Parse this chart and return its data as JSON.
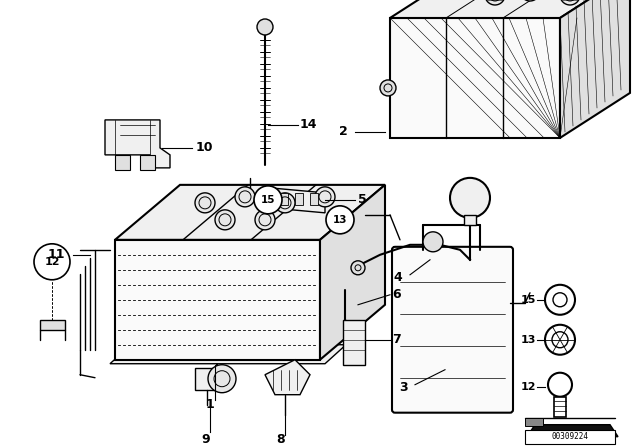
{
  "bg_color": "#ffffff",
  "line_color": "#000000",
  "image_number": "00309224",
  "fig_width": 6.4,
  "fig_height": 4.48,
  "dpi": 100
}
